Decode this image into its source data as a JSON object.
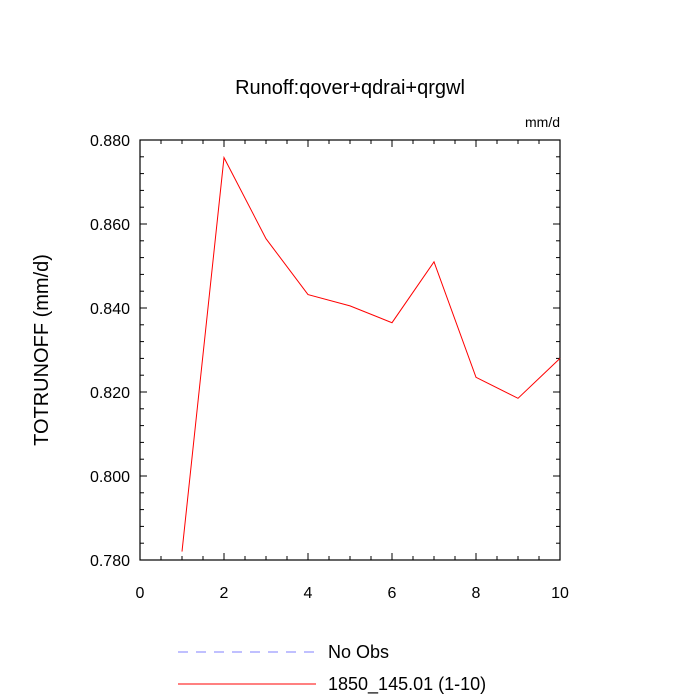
{
  "chart_data": {
    "type": "line",
    "title": "Runoff:qover+qdrai+qrgwl",
    "units_label": "mm/d",
    "ylabel": "TOTRUNOFF  (mm/d)",
    "xlabel": "",
    "xlim": [
      0,
      10
    ],
    "ylim": [
      0.78,
      0.88
    ],
    "x_ticks": [
      0,
      2,
      4,
      6,
      8,
      10
    ],
    "x_tick_labels": [
      "0",
      "2",
      "4",
      "6",
      "8",
      "10"
    ],
    "y_ticks": [
      0.78,
      0.8,
      0.82,
      0.84,
      0.86,
      0.88
    ],
    "y_tick_labels": [
      "0.780",
      "0.800",
      "0.820",
      "0.840",
      "0.860",
      "0.880"
    ],
    "grid": false,
    "legend_position": "bottom",
    "series": [
      {
        "name": "No Obs",
        "color": "#8080ff",
        "dash": "dashed",
        "x": [],
        "y": []
      },
      {
        "name": "1850_145.01 (1-10)",
        "color": "#ff0000",
        "dash": "solid",
        "x": [
          1,
          2,
          3,
          4,
          5,
          6,
          7,
          8,
          9,
          10
        ],
        "y": [
          0.782,
          0.8758,
          0.8565,
          0.8432,
          0.8405,
          0.8365,
          0.851,
          0.8235,
          0.8185,
          0.828
        ]
      }
    ]
  }
}
